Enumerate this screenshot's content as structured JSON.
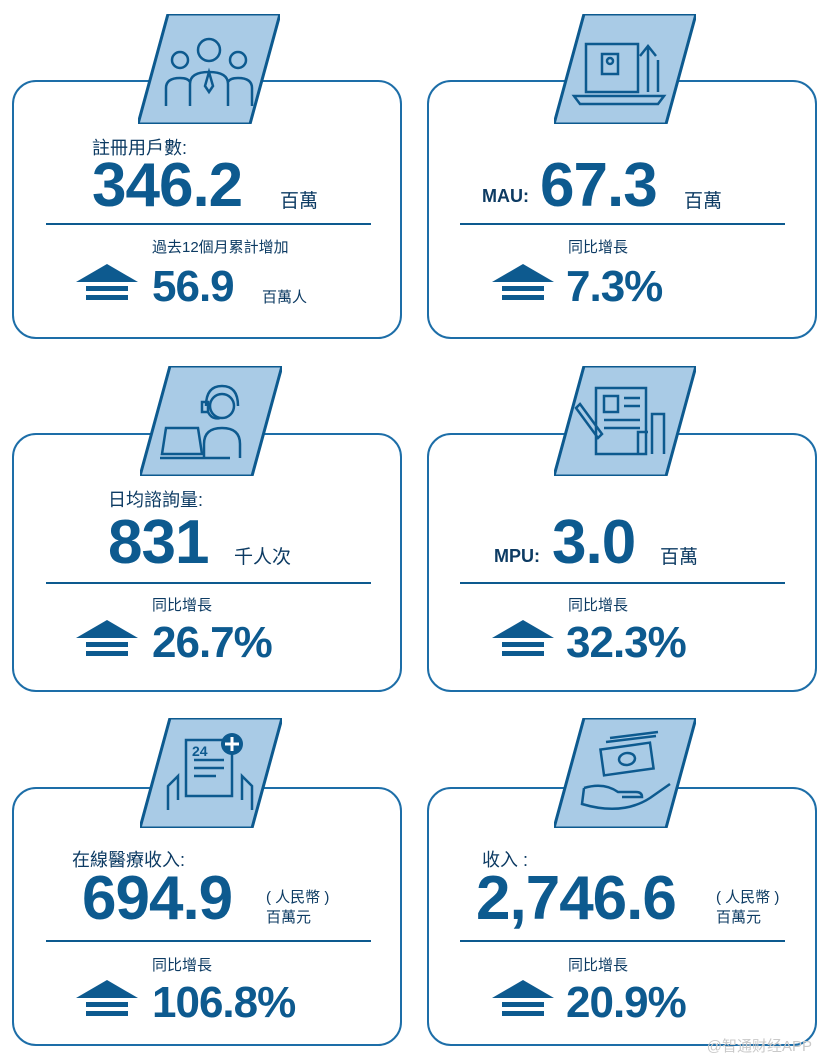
{
  "cards": [
    {
      "label": "註冊用戶數:",
      "prefix": "",
      "value": "346.2",
      "unit": "百萬",
      "unit_line1": "",
      "unit_line2": "",
      "sub_label": "過去12個月累計增加",
      "growth": "56.9",
      "growth_unit": "百萬人",
      "icon": "users-group-icon"
    },
    {
      "label": "",
      "prefix": "MAU:",
      "value": "67.3",
      "unit": "百萬",
      "unit_line1": "",
      "unit_line2": "",
      "sub_label": "同比增長",
      "growth": "7.3%",
      "growth_unit": "",
      "icon": "laptop-growth-icon"
    },
    {
      "label": "日均諮詢量:",
      "prefix": "",
      "value": "831",
      "unit": "千人次",
      "unit_line1": "",
      "unit_line2": "",
      "sub_label": "同比增長",
      "growth": "26.7%",
      "growth_unit": "",
      "icon": "headset-consultant-icon"
    },
    {
      "label": "",
      "prefix": "MPU:",
      "value": "3.0",
      "unit": "百萬",
      "unit_line1": "",
      "unit_line2": "",
      "sub_label": "同比增長",
      "growth": "32.3%",
      "growth_unit": "",
      "icon": "document-chart-icon"
    },
    {
      "label": "在線醫療收入:",
      "prefix": "",
      "value": "694.9",
      "unit": "",
      "unit_line1": "( 人民幣 )",
      "unit_line2": "百萬元",
      "sub_label": "同比增長",
      "growth": "106.8%",
      "growth_unit": "",
      "icon": "medical-24h-icon"
    },
    {
      "label": "收入 :",
      "prefix": "",
      "value": "2,746.6",
      "unit": "",
      "unit_line1": "( 人民幣 )",
      "unit_line2": "百萬元",
      "sub_label": "同比增長",
      "growth": "20.9%",
      "growth_unit": "",
      "icon": "cash-hand-icon"
    }
  ],
  "watermark": "@智通财经APP",
  "colors": {
    "primary": "#0d5a8f",
    "badge_fill": "#a9cbe6",
    "border": "#1d6ea8"
  }
}
